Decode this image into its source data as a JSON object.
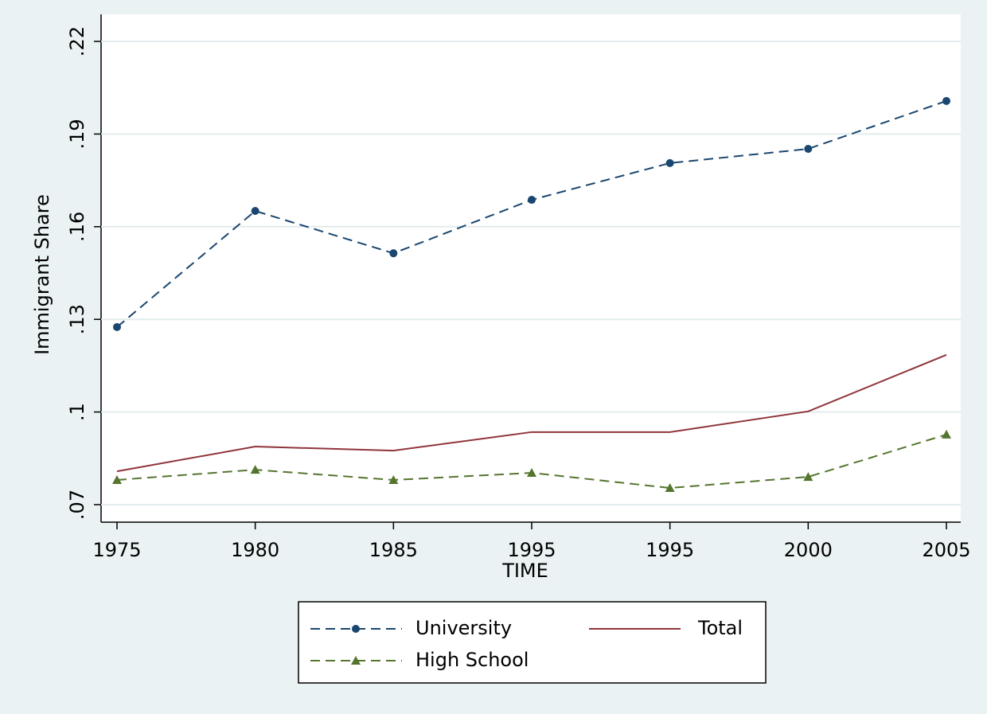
{
  "chart_data": {
    "type": "line",
    "x_label": "TIME",
    "y_label": "Immigrant Share",
    "categories": [
      "1975",
      "1980",
      "1985",
      "1995",
      "1995",
      "2000",
      "2005"
    ],
    "series": [
      {
        "name": "University",
        "color": "#1a476f",
        "line_style": "dashed",
        "marker": "circle",
        "values": [
          0.1275,
          0.1651,
          0.1514,
          0.1687,
          0.1806,
          0.1852,
          0.2007
        ]
      },
      {
        "name": "Total",
        "color": "#90353b",
        "line_style": "solid",
        "marker": "none",
        "values": [
          0.0808,
          0.0888,
          0.0875,
          0.0935,
          0.0935,
          0.1002,
          0.1185
        ]
      },
      {
        "name": "High School",
        "color": "#55752f",
        "line_style": "dashed",
        "marker": "triangle",
        "values": [
          0.078,
          0.0813,
          0.078,
          0.0803,
          0.0754,
          0.079,
          0.0927
        ]
      }
    ],
    "ylim": [
      0.07,
      0.22
    ],
    "yticks": [
      {
        "value": 0.07,
        "label": ".07"
      },
      {
        "value": 0.1,
        "label": ".1"
      },
      {
        "value": 0.13,
        "label": ".13"
      },
      {
        "value": 0.16,
        "label": ".16"
      },
      {
        "value": 0.19,
        "label": ".19"
      },
      {
        "value": 0.22,
        "label": ".22"
      }
    ],
    "grid": true,
    "legend": "bottom"
  }
}
